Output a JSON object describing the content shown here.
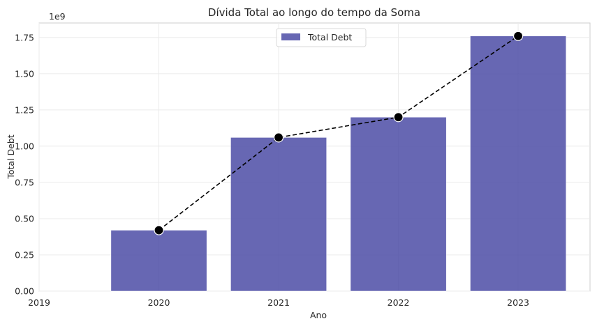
{
  "chart_data": {
    "type": "bar",
    "title": "Dívida Total ao longo do tempo da Soma",
    "xlabel": "Ano",
    "ylabel": "Total Debt",
    "y_offset_label": "1e9",
    "categories": [
      "2020",
      "2021",
      "2022",
      "2023"
    ],
    "x_values": [
      2020,
      2021,
      2022,
      2023
    ],
    "x_tick_labels": [
      "2019",
      "2020",
      "2021",
      "2022",
      "2023"
    ],
    "x_ticks": [
      2019,
      2020,
      2021,
      2022,
      2023
    ],
    "xlim": [
      2019,
      2023.6
    ],
    "y_ticks": [
      0.0,
      0.25,
      0.5,
      0.75,
      1.0,
      1.25,
      1.5,
      1.75
    ],
    "y_tick_labels": [
      "0.00",
      "0.25",
      "0.50",
      "0.75",
      "1.00",
      "1.25",
      "1.50",
      "1.75"
    ],
    "ylim": [
      0,
      1.85
    ],
    "grid": true,
    "legend_position": "top-center",
    "series": [
      {
        "name": "Total Debt",
        "type": "bar",
        "values": [
          0.42,
          1.06,
          1.2,
          1.76
        ],
        "color": "#4c4ca6"
      },
      {
        "type": "line",
        "style": "dashed",
        "marker": "circle",
        "values": [
          0.42,
          1.06,
          1.2,
          1.76
        ],
        "color": "#000000"
      }
    ]
  }
}
